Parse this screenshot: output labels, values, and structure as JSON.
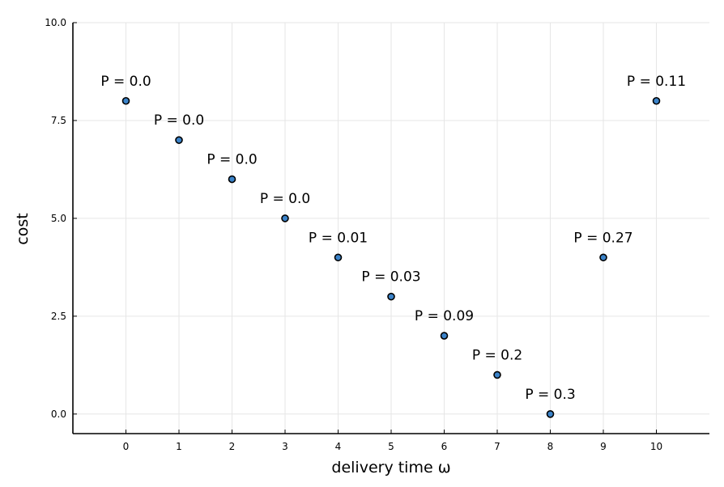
{
  "chart_data": {
    "type": "scatter",
    "title": "",
    "xlabel": "delivery time ω",
    "ylabel": "cost",
    "xlim": [
      -1,
      11
    ],
    "ylim": [
      -0.5,
      10.0
    ],
    "x_ticks": [
      "0",
      "1",
      "2",
      "3",
      "4",
      "5",
      "6",
      "7",
      "8",
      "9",
      "10"
    ],
    "y_ticks": [
      "0.0",
      "2.5",
      "5.0",
      "7.5",
      "10.0"
    ],
    "grid": true,
    "legend": "none",
    "marker_color": "#3b83c9",
    "points": [
      {
        "x": 0,
        "y": 8,
        "label": "P = 0.0"
      },
      {
        "x": 1,
        "y": 7,
        "label": "P = 0.0"
      },
      {
        "x": 2,
        "y": 6,
        "label": "P = 0.0"
      },
      {
        "x": 3,
        "y": 5,
        "label": "P = 0.0"
      },
      {
        "x": 4,
        "y": 4,
        "label": "P = 0.01"
      },
      {
        "x": 5,
        "y": 3,
        "label": "P = 0.03"
      },
      {
        "x": 6,
        "y": 2,
        "label": "P = 0.09"
      },
      {
        "x": 7,
        "y": 1,
        "label": "P = 0.2"
      },
      {
        "x": 8,
        "y": 0,
        "label": "P = 0.3"
      },
      {
        "x": 9,
        "y": 4,
        "label": "P = 0.27"
      },
      {
        "x": 10,
        "y": 8,
        "label": "P = 0.11"
      }
    ]
  }
}
